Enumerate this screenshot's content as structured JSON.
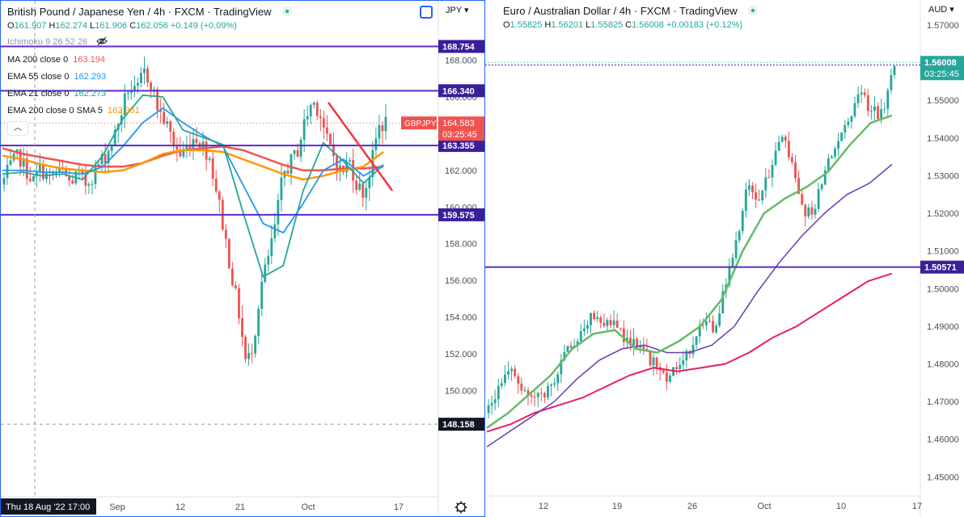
{
  "left": {
    "title": {
      "symbol": "British Pound / Japanese Yen",
      "interval": "4h",
      "source": "FXCM",
      "brand": "TradingView"
    },
    "ohlc": {
      "o_label": "O",
      "o": "161.907",
      "h_label": "H",
      "h": "162.274",
      "l_label": "L",
      "l": "161.906",
      "c_label": "C",
      "c": "162.056",
      "change": "+0.149 (+0.09%)"
    },
    "indicators": [
      {
        "label": "Ichimoku 9 26 52 26",
        "value": "",
        "color": "#9598a1"
      },
      {
        "label": "MA 200 close 0",
        "value": "163.194",
        "color": "#ef5350"
      },
      {
        "label": "EMA 55 close 0",
        "value": "162.293",
        "color": "#2196f3"
      },
      {
        "label": "EMA 21 close 0",
        "value": "162.273",
        "color": "#26a69a"
      },
      {
        "label": "EMA 200 close 0 SMA 5",
        "value": "162.991",
        "color": "#ff9800"
      }
    ],
    "collapse_icon": "chevron-up-icon",
    "axis_unit": "JPY",
    "crosshair_time": "Thu 18 Aug '22 17:00",
    "x_tick_labels": [
      "Sep",
      "12",
      "21",
      "Oct",
      "17"
    ],
    "settings_icon": "gear-icon",
    "price_tags": {
      "symbol_tag": "GBPJPY",
      "last_price": "164.583",
      "countdown": "03:25:45"
    },
    "level_tags": [
      "168.754",
      "166.340",
      "163.355",
      "159.575"
    ],
    "crosshair_price": "148.158"
  },
  "right": {
    "title": {
      "symbol": "Euro / Australian Dollar",
      "interval": "4h",
      "source": "FXCM",
      "brand": "TradingView"
    },
    "ohlc": {
      "o_label": "O",
      "o": "1.55825",
      "h_label": "H",
      "h": "1.56201",
      "l_label": "L",
      "l": "1.55825",
      "c_label": "C",
      "c": "1.56008",
      "change": "+0.00183 (+0.12%)"
    },
    "axis_unit": "AUD",
    "x_tick_labels": [
      "12",
      "19",
      "26",
      "Oct",
      "10",
      "17"
    ],
    "price_tags": {
      "last_price": "1.56008",
      "countdown": "03:25:45",
      "level_price": "1.55943"
    },
    "level_tags": [
      "1.50571"
    ]
  },
  "chart_data": [
    {
      "type": "candlestick",
      "title": "British Pound / Japanese Yen · 4h · FXCM",
      "ylabel": "JPY",
      "ylim": [
        147.9,
        168.6
      ],
      "y_ticks": [
        150,
        152,
        154,
        156,
        158,
        160,
        162,
        164,
        166,
        168
      ],
      "x_ticks": [
        "Sep",
        "12",
        "21",
        "Oct",
        "17"
      ],
      "horizontal_levels": [
        168.754,
        166.34,
        163.355,
        159.575
      ],
      "trendline": {
        "from": 165.7,
        "to": 160.9
      },
      "close_path": [
        161.5,
        162.3,
        162.8,
        162.0,
        161.4,
        162.1,
        161.6,
        161.8,
        161.9,
        161.3,
        161.8,
        161.2,
        161.7,
        162.4,
        162.9,
        163.8,
        165.2,
        166.6,
        166.1,
        167.4,
        166.8,
        165.3,
        164.6,
        163.6,
        162.8,
        163.3,
        163.9,
        163.4,
        162.7,
        160.8,
        158.6,
        156.3,
        154.2,
        151.3,
        152.7,
        155.7,
        157.2,
        159.1,
        161.8,
        162.4,
        163.1,
        164.7,
        165.8,
        165.2,
        163.6,
        162.7,
        161.8,
        162.6,
        161.3,
        160.7,
        162.2,
        164.4,
        164.58
      ],
      "ma200": [
        163.2,
        162.9,
        162.7,
        162.5,
        162.3,
        162.2,
        162.2,
        162.4,
        162.8,
        163.1,
        163.2,
        163.3,
        163.1,
        162.7,
        162.3,
        162.0,
        162.0,
        162.1,
        162.1,
        162.2
      ],
      "ema55": [
        162.0,
        162.0,
        161.9,
        161.9,
        161.8,
        162.2,
        163.3,
        164.6,
        165.4,
        164.6,
        163.9,
        163.3,
        161.2,
        159.1,
        158.6,
        160.2,
        162.0,
        162.6,
        161.7,
        162.3
      ],
      "ema21": [
        161.8,
        161.9,
        161.7,
        161.8,
        161.5,
        162.8,
        164.8,
        166.1,
        166.0,
        164.2,
        163.8,
        163.4,
        159.7,
        156.2,
        156.8,
        160.9,
        163.5,
        162.5,
        161.3,
        162.3
      ],
      "ema200sma5": [
        162.8,
        162.6,
        162.3,
        162.1,
        162.0,
        161.9,
        162.0,
        162.4,
        162.9,
        163.1,
        163.1,
        163.0,
        162.6,
        162.2,
        161.8,
        161.5,
        161.7,
        162.0,
        162.2,
        163.0
      ]
    },
    {
      "type": "candlestick",
      "title": "Euro / Australian Dollar · 4h · FXCM",
      "ylabel": "AUD",
      "ylim": [
        1.4475,
        1.5715
      ],
      "y_ticks": [
        1.45,
        1.46,
        1.47,
        1.48,
        1.49,
        1.5,
        1.51,
        1.52,
        1.53,
        1.54,
        1.55,
        1.56,
        1.57
      ],
      "x_ticks": [
        "12",
        "19",
        "26",
        "Oct",
        "10",
        "17"
      ],
      "horizontal_levels": [
        1.5594,
        1.50571
      ],
      "close_path": [
        1.468,
        1.475,
        1.479,
        1.474,
        1.47,
        1.472,
        1.477,
        1.484,
        1.488,
        1.492,
        1.49,
        1.491,
        1.487,
        1.485,
        1.482,
        1.48,
        1.476,
        1.48,
        1.484,
        1.491,
        1.489,
        1.501,
        1.512,
        1.528,
        1.524,
        1.531,
        1.54,
        1.534,
        1.52,
        1.522,
        1.533,
        1.54,
        1.545,
        1.552,
        1.547,
        1.546,
        1.56
      ],
      "ema_green": [
        1.463,
        1.467,
        1.472,
        1.477,
        1.484,
        1.488,
        1.489,
        1.484,
        1.483,
        1.486,
        1.49,
        1.497,
        1.51,
        1.52,
        1.524,
        1.527,
        1.531,
        1.538,
        1.544,
        1.546
      ],
      "ema_purple": [
        1.458,
        1.462,
        1.466,
        1.47,
        1.476,
        1.481,
        1.484,
        1.485,
        1.483,
        1.483,
        1.485,
        1.49,
        1.499,
        1.507,
        1.514,
        1.52,
        1.525,
        1.528,
        1.533
      ],
      "ema_crimson": [
        1.462,
        1.464,
        1.467,
        1.469,
        1.471,
        1.474,
        1.477,
        1.479,
        1.478,
        1.479,
        1.48,
        1.483,
        1.487,
        1.49,
        1.494,
        1.498,
        1.502,
        1.504
      ]
    }
  ]
}
